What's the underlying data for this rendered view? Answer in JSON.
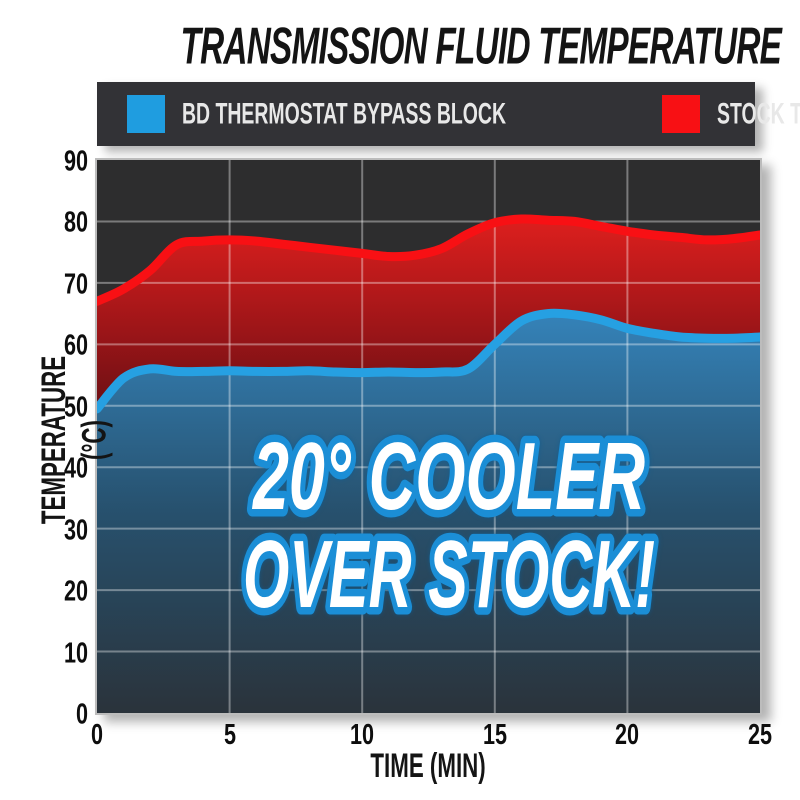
{
  "title": "TRANSMISSION FLUID TEMPERATURE",
  "legend": {
    "items": [
      {
        "label": "BD THERMOSTAT BYPASS BLOCK",
        "color": "#1f9de0"
      },
      {
        "label": "STOCK THERMOSTAT",
        "color": "#f81014"
      }
    ]
  },
  "annotation": {
    "line1": "20° COOLER",
    "line2": "OVER STOCK!"
  },
  "chart_data": {
    "type": "area",
    "title": "TRANSMISSION FLUID TEMPERATURE",
    "xlabel": "TIME (MIN)",
    "ylabel": "TEMPERATURE (°C)",
    "xlim": [
      0,
      25
    ],
    "ylim": [
      0,
      90
    ],
    "x_ticks": [
      0,
      5,
      10,
      15,
      20,
      25
    ],
    "y_ticks": [
      0,
      10,
      20,
      30,
      40,
      50,
      60,
      70,
      80,
      90
    ],
    "grid": true,
    "legend_position": "top",
    "x": [
      0,
      1,
      2,
      3,
      4,
      5,
      6,
      7,
      8,
      9,
      10,
      11,
      12,
      13,
      14,
      15,
      16,
      17,
      18,
      19,
      20,
      21,
      22,
      23,
      24,
      25
    ],
    "series": [
      {
        "name": "BD THERMOSTAT BYPASS BLOCK",
        "color": "#26a0e2",
        "values": [
          49.5,
          54.5,
          56,
          55.6,
          55.6,
          55.7,
          55.6,
          55.6,
          55.7,
          55.5,
          55.4,
          55.5,
          55.4,
          55.5,
          56,
          60,
          63.8,
          65,
          64.8,
          64,
          62.6,
          61.8,
          61.2,
          61,
          61,
          61.2
        ]
      },
      {
        "name": "STOCK THERMOSTAT",
        "color": "#f81014",
        "values": [
          67,
          69,
          72,
          76.2,
          76.8,
          77,
          76.8,
          76.3,
          75.8,
          75.3,
          74.8,
          74.3,
          74.5,
          75.6,
          78,
          79.8,
          80.4,
          80.2,
          80,
          79.2,
          78.4,
          77.8,
          77.4,
          77,
          77.2,
          77.8
        ]
      }
    ]
  },
  "colors": {
    "plot_bg": "#2d2d2e",
    "legend_bg": "#323236",
    "grid_line": "rgba(255,255,255,0.37)",
    "blue_stroke": "#26a0e2",
    "blue_fill_top": "#3584bb",
    "blue_fill_mid": "#27516e",
    "blue_fill_bottom": "#2a333b",
    "red_stroke": "#f81014",
    "red_fill_top": "#e3201e",
    "red_fill_mid": "#9c1518",
    "red_fill_bottom": "#5f0e12",
    "annotation_fill": "#ffffff",
    "annotation_outline": "#1b8ed6"
  }
}
